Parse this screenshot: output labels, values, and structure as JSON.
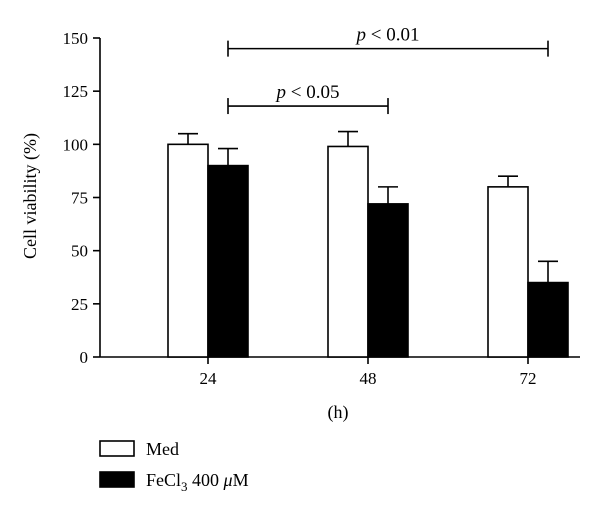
{
  "chart_data": {
    "type": "bar",
    "xlabel": "(h)",
    "ylabel": "Cell viability (%)",
    "ylim": [
      0,
      150
    ],
    "yticks": [
      0,
      25,
      50,
      75,
      100,
      125,
      150
    ],
    "categories": [
      "24",
      "48",
      "72"
    ],
    "series": [
      {
        "name": "Med",
        "fill": "#ffffff",
        "values": [
          100,
          99,
          80
        ],
        "errors": [
          5,
          7,
          5
        ]
      },
      {
        "name": "FeCl3 400 μM",
        "name_prefix": "FeCl",
        "name_subscript": "3",
        "name_suffix": " 400 ",
        "name_mu": "μ",
        "name_unit": "M",
        "fill": "#000000",
        "values": [
          90,
          72,
          35
        ],
        "errors": [
          8,
          8,
          10
        ]
      }
    ],
    "annotations": [
      {
        "p_symbol": "p",
        "p_text": " < 0.01",
        "from_category": "24",
        "from_series": "FeCl3 400 μM",
        "to_category": "72",
        "to_series": "FeCl3 400 μM",
        "level": 145
      },
      {
        "p_symbol": "p",
        "p_text": " < 0.05",
        "from_category": "24",
        "from_series": "FeCl3 400 μM",
        "to_category": "48",
        "to_series": "FeCl3 400 μM",
        "level": 118
      }
    ],
    "legend_position": "bottom-left",
    "grid": false
  }
}
